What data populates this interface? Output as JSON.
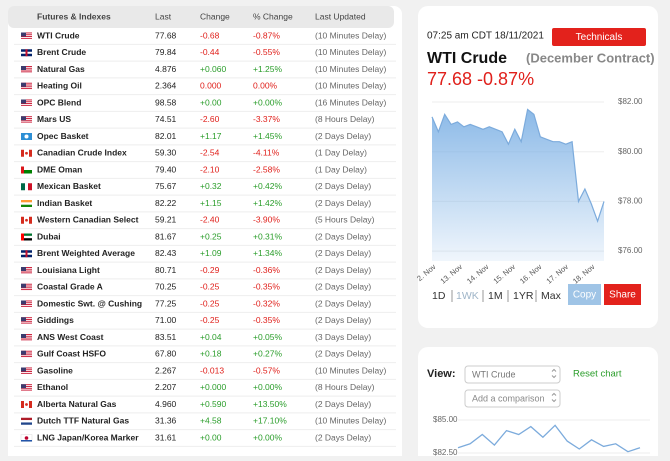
{
  "table": {
    "header": [
      "Futures & Indexes",
      "Last",
      "Change",
      "% Change",
      "Last Updated"
    ],
    "rows": [
      [
        "WTI Crude",
        "77.68",
        "-0.68",
        "-0.87%",
        "(10 Minutes Delay)"
      ],
      [
        "Brent Crude",
        "79.84",
        "-0.44",
        "-0.55%",
        "(10 Minutes Delay)"
      ],
      [
        "Natural Gas",
        "4.876",
        "+0.060",
        "+1.25%",
        "(10 Minutes Delay)"
      ],
      [
        "Heating Oil",
        "2.364",
        "0.000",
        "0.00%",
        "(10 Minutes Delay)"
      ],
      [
        "OPC Blend",
        "98.58",
        "+0.00",
        "+0.00%",
        "(16 Minutes Delay)"
      ],
      [
        "Mars US",
        "74.51",
        "-2.60",
        "-3.37%",
        "(8 Hours Delay)"
      ],
      [
        "Opec Basket",
        "82.01",
        "+1.17",
        "+1.45%",
        "(2 Days Delay)"
      ],
      [
        "Canadian Crude Index",
        "59.30",
        "-2.54",
        "-4.11%",
        "(1 Day Delay)"
      ],
      [
        "DME Oman",
        "79.40",
        "-2.10",
        "-2.58%",
        "(1 Day Delay)"
      ],
      [
        "Mexican Basket",
        "75.67",
        "+0.32",
        "+0.42%",
        "(2 Days Delay)"
      ],
      [
        "Indian Basket",
        "82.22",
        "+1.15",
        "+1.42%",
        "(2 Days Delay)"
      ],
      [
        "Western Canadian Select",
        "59.21",
        "-2.40",
        "-3.90%",
        "(5 Hours Delay)"
      ],
      [
        "Dubai",
        "81.67",
        "+0.25",
        "+0.31%",
        "(2 Days Delay)"
      ],
      [
        "Brent Weighted Average",
        "82.43",
        "+1.09",
        "+1.34%",
        "(2 Days Delay)"
      ],
      [
        "Louisiana Light",
        "80.71",
        "-0.29",
        "-0.36%",
        "(2 Days Delay)"
      ],
      [
        "Coastal Grade A",
        "70.25",
        "-0.25",
        "-0.35%",
        "(2 Days Delay)"
      ],
      [
        "Domestic Swt. @ Cushing",
        "77.25",
        "-0.25",
        "-0.32%",
        "(2 Days Delay)"
      ],
      [
        "Giddings",
        "71.00",
        "-0.25",
        "-0.35%",
        "(2 Days Delay)"
      ],
      [
        "ANS West Coast",
        "83.51",
        "+0.04",
        "+0.05%",
        "(3 Days Delay)"
      ],
      [
        "Gulf Coast HSFO",
        "67.80",
        "+0.18",
        "+0.27%",
        "(2 Days Delay)"
      ],
      [
        "Gasoline",
        "2.267",
        "-0.013",
        "-0.57%",
        "(10 Minutes Delay)"
      ],
      [
        "Ethanol",
        "2.207",
        "+0.000",
        "+0.00%",
        "(8 Hours Delay)"
      ],
      [
        "Alberta Natural Gas",
        "4.960",
        "+0.590",
        "+13.50%",
        "(2 Days Delay)"
      ],
      [
        "Dutch TTF Natural Gas",
        "31.36",
        "+4.58",
        "+17.10%",
        "(10 Minutes Delay)"
      ],
      [
        "LNG Japan/Korea Marker",
        "31.61",
        "+0.00",
        "+0.00%",
        "(2 Days Delay)"
      ]
    ]
  },
  "quote": {
    "time": "07:25 am CDT 18/11/2021",
    "technicals": "Technicals",
    "name": "WTI Crude",
    "contract": "(December Contract)",
    "price": "77.68 -0.87%",
    "ranges": [
      "1D",
      "1WK",
      "1M",
      "1YR",
      "Max"
    ],
    "copy": "Copy",
    "share": "Share"
  },
  "chart": {
    "type": "area",
    "ylim": [
      75.6,
      82.0
    ],
    "yticks": [
      {
        "value": 82,
        "label": "$82.00"
      },
      {
        "value": 80,
        "label": "$80.00"
      },
      {
        "value": 78,
        "label": "$78.00"
      },
      {
        "value": 76,
        "label": "$76.00"
      }
    ],
    "xtick_labels": [
      "2. Nov",
      "13. Nov",
      "14. Nov",
      "15. Nov",
      "16. Nov",
      "17. Nov",
      "18. Nov"
    ],
    "values": [
      81.4,
      80.8,
      81.5,
      81.1,
      81.2,
      81.0,
      81.1,
      81.0,
      80.9,
      81.0,
      80.9,
      80.8,
      80.3,
      80.9,
      80.4,
      81.7,
      81.5,
      80.6,
      80.5,
      80.4,
      80.4,
      80.3,
      80.4,
      78.0,
      78.5,
      77.9,
      77.2,
      78.0
    ]
  },
  "view": {
    "label": "View:",
    "select": "WTI Crude",
    "reset": "Reset chart",
    "compare": "Add a comparison"
  },
  "mini_chart": {
    "type": "line",
    "ylim": [
      82.3,
      85.2
    ],
    "yticks": [
      {
        "value": 85,
        "label": "$85.00"
      },
      {
        "value": 82.5,
        "label": "$82.50"
      }
    ],
    "values": [
      82.9,
      83.2,
      83.9,
      83.1,
      84.2,
      83.9,
      84.5,
      83.7,
      84.6,
      83.4,
      82.8,
      83.5,
      83.0,
      83.2,
      82.6,
      82.9
    ]
  }
}
